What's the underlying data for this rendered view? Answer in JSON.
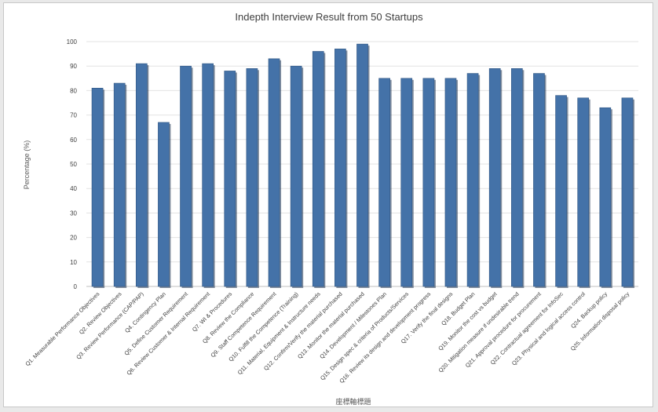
{
  "chart_data": {
    "type": "bar",
    "title": "Indepth Interview Result from 50 Startups",
    "ylabel": "Percentage (%)",
    "xlabel": "座標軸標題",
    "ylim": [
      0,
      100
    ],
    "ytick_step": 10,
    "grid": true,
    "legend": "none",
    "bar_color": "#4472a8",
    "categories": [
      "Q1. Measurable Performance Objectives",
      "Q2. Review Objectives",
      "Q3. Review Performance (CAP/PAP)",
      "Q4. Contingency Plan",
      "Q5. Define Customer Requirement",
      "Q6. Review Customer & Internal Requirement",
      "Q7. WI & Procedures",
      "Q8. Review the Compliance",
      "Q9. Staff Competence Requirement",
      "Q10. Fulfill the Competence (Training)",
      "Q11. Material, Equipment & Instructure needs",
      "Q12. Confirm/Verify the material purchased",
      "Q13. Monitor the material purchased",
      "Q14. Development / Milestones Plan",
      "Q15. Design spec & criteria of Products/Services",
      "Q16. Review its design and development progress",
      "Q17. Verify the final designs",
      "Q18. Budget Plan",
      "Q19. Monitor the cost vs budget",
      "Q20. Mitigation measure if undesirable trend",
      "Q21. Approval procedure for procurement",
      "Q22. Contractual agreement for InfoSec",
      "Q23. Physical and logical access control",
      "Q24. Backup policy",
      "Q25. Information disposal policy"
    ],
    "values": [
      81,
      83,
      91,
      67,
      90,
      91,
      88,
      89,
      93,
      90,
      96,
      97,
      99,
      85,
      85,
      85,
      85,
      87,
      89,
      89,
      87,
      78,
      77,
      73,
      77
    ]
  }
}
